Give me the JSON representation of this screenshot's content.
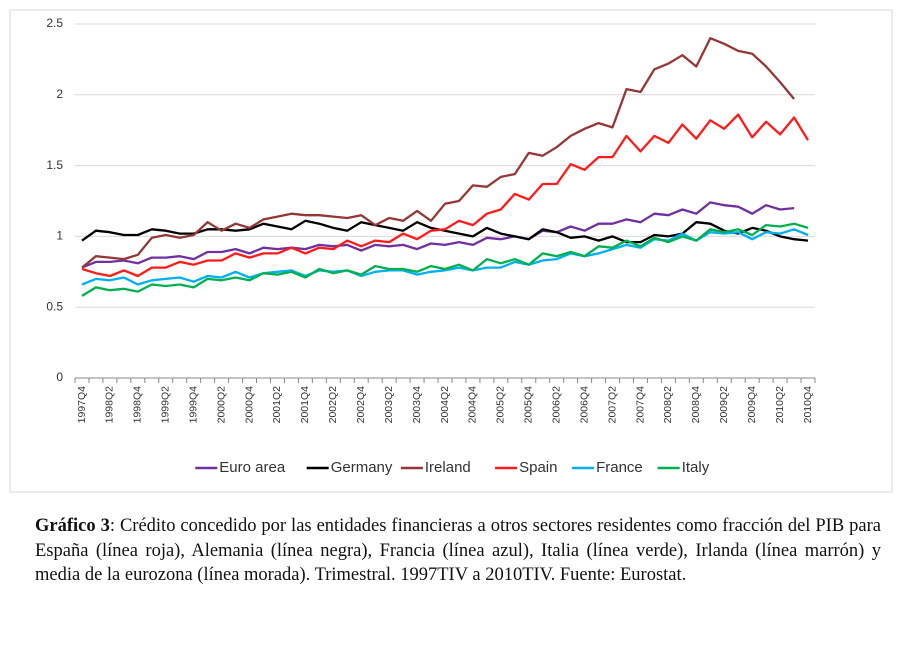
{
  "chart_data": {
    "type": "line",
    "categories": [
      "1997Q4",
      null,
      "1998Q2",
      null,
      "1998Q4",
      null,
      "1999Q2",
      null,
      "1999Q4",
      null,
      "2000Q2",
      null,
      "2000Q4",
      null,
      "2001Q2",
      null,
      "2001Q4",
      null,
      "2002Q2",
      null,
      "2002Q4",
      null,
      "2003Q2",
      null,
      "2003Q4",
      null,
      "2004Q2",
      null,
      "2004Q4",
      null,
      "2005Q2",
      null,
      "2005Q4",
      null,
      "2006Q2",
      null,
      "2006Q4",
      null,
      "2007Q2",
      null,
      "2007Q4",
      null,
      "2008Q2",
      null,
      "2008Q4",
      null,
      "2009Q2",
      null,
      "2009Q4",
      null,
      "2010Q2",
      null,
      "2010Q4"
    ],
    "series": [
      {
        "name": "Euro area",
        "color": "#7030a0",
        "values": [
          0.78,
          0.82,
          0.82,
          0.83,
          0.81,
          0.85,
          0.85,
          0.86,
          0.84,
          0.89,
          0.89,
          0.91,
          0.88,
          0.92,
          0.91,
          0.92,
          0.91,
          0.94,
          0.93,
          0.94,
          0.9,
          0.94,
          0.93,
          0.94,
          0.91,
          0.95,
          0.94,
          0.96,
          0.94,
          0.99,
          0.98,
          1.0,
          0.98,
          1.04,
          1.03,
          1.07,
          1.04,
          1.09,
          1.09,
          1.12,
          1.1,
          1.16,
          1.15,
          1.19,
          1.16,
          1.24,
          1.22,
          1.21,
          1.16,
          1.22,
          1.19,
          1.2,
          null
        ]
      },
      {
        "name": "Germany",
        "color": "#000000",
        "values": [
          0.97,
          1.04,
          1.03,
          1.01,
          1.01,
          1.05,
          1.04,
          1.02,
          1.02,
          1.05,
          1.05,
          1.04,
          1.05,
          1.09,
          1.07,
          1.05,
          1.11,
          1.09,
          1.06,
          1.04,
          1.1,
          1.08,
          1.06,
          1.04,
          1.1,
          1.06,
          1.04,
          1.02,
          1.0,
          1.06,
          1.02,
          1.0,
          0.98,
          1.05,
          1.03,
          0.99,
          1.0,
          0.97,
          1.0,
          0.96,
          0.96,
          1.01,
          1.0,
          1.02,
          1.1,
          1.09,
          1.04,
          1.02,
          1.06,
          1.04,
          1.0,
          0.98,
          0.97
        ]
      },
      {
        "name": "Ireland",
        "color": "#953735",
        "values": [
          0.78,
          0.86,
          0.85,
          0.84,
          0.87,
          0.99,
          1.01,
          0.99,
          1.01,
          1.1,
          1.04,
          1.09,
          1.06,
          1.12,
          1.14,
          1.16,
          1.15,
          1.15,
          1.14,
          1.13,
          1.15,
          1.08,
          1.13,
          1.11,
          1.18,
          1.11,
          1.23,
          1.25,
          1.36,
          1.35,
          1.42,
          1.44,
          1.59,
          1.57,
          1.63,
          1.71,
          1.76,
          1.8,
          1.77,
          2.04,
          2.02,
          2.18,
          2.22,
          2.28,
          2.2,
          2.4,
          2.36,
          2.31,
          2.29,
          2.2,
          2.09,
          1.97,
          null
        ]
      },
      {
        "name": "Spain",
        "color": "#ff1a1a",
        "values": [
          0.77,
          0.74,
          0.72,
          0.76,
          0.72,
          0.78,
          0.78,
          0.82,
          0.8,
          0.83,
          0.83,
          0.88,
          0.85,
          0.88,
          0.88,
          0.92,
          0.88,
          0.92,
          0.91,
          0.97,
          0.93,
          0.97,
          0.96,
          1.02,
          0.98,
          1.04,
          1.05,
          1.11,
          1.08,
          1.16,
          1.19,
          1.3,
          1.26,
          1.37,
          1.37,
          1.51,
          1.47,
          1.56,
          1.56,
          1.71,
          1.6,
          1.71,
          1.66,
          1.79,
          1.69,
          1.82,
          1.76,
          1.86,
          1.7,
          1.81,
          1.72,
          1.84,
          1.68
        ]
      },
      {
        "name": "France",
        "color": "#00b0f0",
        "values": [
          0.66,
          0.7,
          0.69,
          0.71,
          0.66,
          0.69,
          0.7,
          0.71,
          0.68,
          0.72,
          0.71,
          0.75,
          0.71,
          0.74,
          0.75,
          0.76,
          0.72,
          0.76,
          0.75,
          0.76,
          0.72,
          0.75,
          0.76,
          0.76,
          0.73,
          0.75,
          0.76,
          0.78,
          0.76,
          0.78,
          0.78,
          0.82,
          0.8,
          0.83,
          0.84,
          0.88,
          0.86,
          0.88,
          0.91,
          0.94,
          0.92,
          0.98,
          0.97,
          1.02,
          0.97,
          1.03,
          1.02,
          1.03,
          0.98,
          1.03,
          1.02,
          1.05,
          1.01
        ]
      },
      {
        "name": "Italy",
        "color": "#00b050",
        "values": [
          0.58,
          0.64,
          0.62,
          0.63,
          0.61,
          0.66,
          0.65,
          0.66,
          0.64,
          0.7,
          0.69,
          0.71,
          0.69,
          0.74,
          0.73,
          0.75,
          0.71,
          0.77,
          0.74,
          0.76,
          0.73,
          0.79,
          0.77,
          0.77,
          0.75,
          0.79,
          0.77,
          0.8,
          0.76,
          0.84,
          0.81,
          0.84,
          0.8,
          0.88,
          0.86,
          0.89,
          0.86,
          0.93,
          0.92,
          0.97,
          0.93,
          0.99,
          0.96,
          1.0,
          0.97,
          1.05,
          1.03,
          1.05,
          1.01,
          1.08,
          1.07,
          1.09,
          1.06
        ]
      }
    ],
    "ylim": [
      0,
      2.5
    ],
    "yticks": [
      0,
      0.5,
      1,
      1.5,
      2,
      2.5
    ],
    "grid": true,
    "legend": "bottom"
  },
  "caption": {
    "label": "Gráfico 3",
    "text": ": Crédito concedido por las entidades financieras a otros sectores residentes como fracción del PIB para España (línea roja), Alemania (línea negra), Francia (línea azul), Italia (línea verde), Irlanda (línea marrón) y media de la eurozona (línea morada). Trimestral. 1997TIV a 2010TIV. Fuente: Eurostat."
  }
}
